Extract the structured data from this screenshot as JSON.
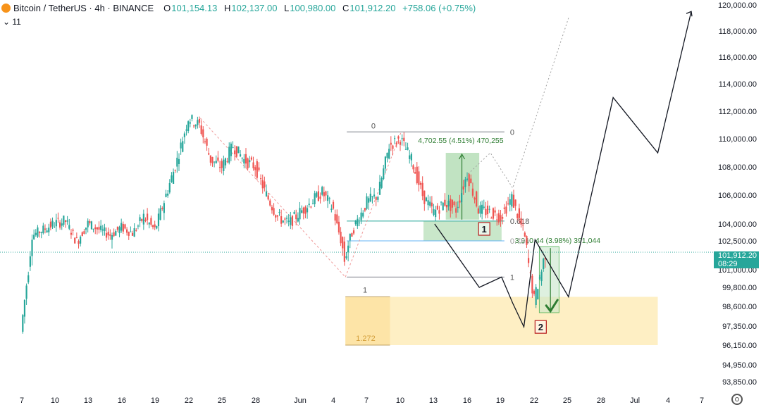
{
  "header": {
    "symbol": "Bitcoin / TetherUS · 4h · BINANCE",
    "o_label": "O",
    "o_value": "101,154.13",
    "h_label": "H",
    "h_value": "102,137.00",
    "l_label": "L",
    "l_value": "100,980.00",
    "c_label": "C",
    "c_value": "101,912.20",
    "change": "+758.06 (+0.75%)",
    "indicator_count": "11"
  },
  "price_tag": {
    "price": "101,912.20",
    "countdown": "08:29"
  },
  "colors": {
    "up": "#26a69a",
    "down": "#ef5350",
    "accent": "#26a69a",
    "zone_yellow": "#fde9b0",
    "zone_green": "#4caf50"
  },
  "icons": [
    "bitcoin-logo-icon",
    "settings-gear-icon",
    "checkmark-icon"
  ],
  "chart_data": {
    "type": "candlestick",
    "y_axis": {
      "ticks": [
        "120,000.00",
        "118,000.00",
        "116,000.00",
        "114,000.00",
        "112,000.00",
        "110,000.00",
        "108,000.00",
        "106,000.00",
        "104,000.00",
        "102,500.00",
        "101,000.00",
        "99,800.00",
        "98,600.00",
        "97,350.00",
        "96,150.00",
        "94,950.00",
        "93,850.00"
      ],
      "tick_values": [
        120000,
        118000,
        116000,
        114000,
        112000,
        110000,
        108000,
        106000,
        104000,
        102500,
        101000,
        99800,
        98600,
        97350,
        96150,
        94950,
        93850
      ],
      "position": "right"
    },
    "x_axis": {
      "ticks": [
        "7",
        "10",
        "13",
        "16",
        "19",
        "22",
        "25",
        "28",
        "Jun",
        "4",
        "7",
        "10",
        "13",
        "16",
        "19",
        "22",
        "25",
        "28",
        "Jul",
        "4",
        "7"
      ]
    },
    "price_path": [
      {
        "date": "May 7",
        "price": 97000
      },
      {
        "date": "May 8",
        "price": 103000
      },
      {
        "date": "May 9",
        "price": 103500
      },
      {
        "date": "May 10",
        "price": 104000
      },
      {
        "date": "May 11",
        "price": 104200
      },
      {
        "date": "May 12",
        "price": 102500
      },
      {
        "date": "May 13",
        "price": 104000
      },
      {
        "date": "May 14",
        "price": 103500
      },
      {
        "date": "May 15",
        "price": 103000
      },
      {
        "date": "May 16",
        "price": 103700
      },
      {
        "date": "May 17",
        "price": 103200
      },
      {
        "date": "May 18",
        "price": 104500
      },
      {
        "date": "May 19",
        "price": 103500
      },
      {
        "date": "May 20",
        "price": 106000
      },
      {
        "date": "May 21",
        "price": 108500
      },
      {
        "date": "May 22",
        "price": 111500
      },
      {
        "date": "May 23",
        "price": 111000
      },
      {
        "date": "May 24",
        "price": 108500
      },
      {
        "date": "May 25",
        "price": 108000
      },
      {
        "date": "May 26",
        "price": 109500
      },
      {
        "date": "May 27",
        "price": 108500
      },
      {
        "date": "May 28",
        "price": 108000
      },
      {
        "date": "May 29",
        "price": 106000
      },
      {
        "date": "May 30",
        "price": 104500
      },
      {
        "date": "May 31",
        "price": 104000
      },
      {
        "date": "Jun 1",
        "price": 104800
      },
      {
        "date": "Jun 2",
        "price": 105500
      },
      {
        "date": "Jun 3",
        "price": 106200
      },
      {
        "date": "Jun 4",
        "price": 105000
      },
      {
        "date": "Jun 5",
        "price": 101500
      },
      {
        "date": "Jun 6",
        "price": 104000
      },
      {
        "date": "Jun 7",
        "price": 105500
      },
      {
        "date": "Jun 8",
        "price": 106000
      },
      {
        "date": "Jun 9",
        "price": 109500
      },
      {
        "date": "Jun 10",
        "price": 110000
      },
      {
        "date": "Jun 11",
        "price": 108500
      },
      {
        "date": "Jun 12",
        "price": 106000
      },
      {
        "date": "Jun 13",
        "price": 104800
      },
      {
        "date": "Jun 14",
        "price": 105500
      },
      {
        "date": "Jun 15",
        "price": 105000
      },
      {
        "date": "Jun 16",
        "price": 107500
      },
      {
        "date": "Jun 17",
        "price": 105000
      },
      {
        "date": "Jun 18",
        "price": 104800
      },
      {
        "date": "Jun 19",
        "price": 104500
      },
      {
        "date": "Jun 20",
        "price": 105800
      },
      {
        "date": "Jun 21",
        "price": 103500
      },
      {
        "date": "Jun 22",
        "price": 99000
      },
      {
        "date": "Jun 23",
        "price": 101912
      }
    ],
    "fib_1": {
      "levels": [
        {
          "label": "0",
          "price": 110500
        },
        {
          "label": "0.618",
          "price": 104200
        },
        {
          "label": "0.786",
          "price": 102500
        },
        {
          "label": "1",
          "price": 100500
        }
      ]
    },
    "fib_2": {
      "levels": [
        {
          "label": "0",
          "price": 110500
        },
        {
          "label": "1",
          "price": 99200
        },
        {
          "label": "1.272",
          "price": 96150
        }
      ]
    },
    "measure_1": {
      "label": "4,702.55 (4.51%) 470,255",
      "from_price": 104300,
      "to_price": 109000
    },
    "measure_2": {
      "label": "3,910.44 (3.98%) 391,044",
      "from_price": 98200,
      "to_price": 102200
    },
    "zone_labels": [
      "1",
      "2"
    ],
    "projection": [
      {
        "date": "Jun 13",
        "price": 104000
      },
      {
        "date": "Jun 17",
        "price": 99800
      },
      {
        "date": "Jun 19",
        "price": 100500
      },
      {
        "date": "Jun 20",
        "price": 98800
      },
      {
        "date": "Jun 21",
        "price": 97300
      },
      {
        "date": "Jun 22",
        "price": 102600
      },
      {
        "date": "Jun 25",
        "price": 99200
      },
      {
        "date": "Jun 29",
        "price": 113000
      },
      {
        "date": "Jul 3",
        "price": 109000
      },
      {
        "date": "Jul 6",
        "price": 119500
      }
    ]
  }
}
